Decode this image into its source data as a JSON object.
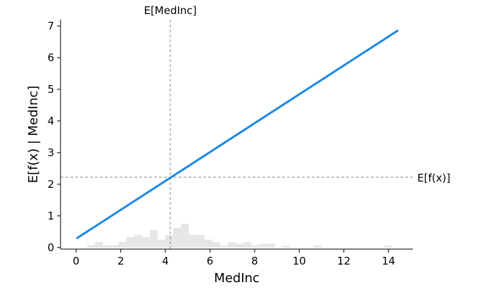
{
  "chart_data": {
    "type": "line",
    "xlabel": "MedInc",
    "ylabel": "E[f(x) | MedInc]",
    "xlim": [
      -0.7,
      15.1
    ],
    "ylim": [
      -0.05,
      7.2
    ],
    "x_ticks": [
      0,
      2,
      4,
      6,
      8,
      10,
      12,
      14
    ],
    "y_ticks": [
      0,
      1,
      2,
      3,
      4,
      5,
      6,
      7
    ],
    "line": {
      "color": "#1E88E5",
      "x": [
        0.05,
        14.4
      ],
      "y": [
        0.3,
        6.85
      ]
    },
    "expected_value": {
      "label": "E[f(x)]",
      "y": 2.22
    },
    "expected_feature": {
      "label": "E[MedInc]",
      "x": 4.22
    },
    "histogram": {
      "color": "#e6e6e6",
      "bin_width": 0.35,
      "bins": [
        {
          "x": 0.5,
          "h": 0.07
        },
        {
          "x": 0.85,
          "h": 0.17
        },
        {
          "x": 1.2,
          "h": 0.07
        },
        {
          "x": 1.55,
          "h": 0.07
        },
        {
          "x": 1.9,
          "h": 0.18
        },
        {
          "x": 2.25,
          "h": 0.33
        },
        {
          "x": 2.6,
          "h": 0.4
        },
        {
          "x": 2.95,
          "h": 0.33
        },
        {
          "x": 3.3,
          "h": 0.55
        },
        {
          "x": 3.65,
          "h": 0.25
        },
        {
          "x": 4.0,
          "h": 0.4
        },
        {
          "x": 4.35,
          "h": 0.62
        },
        {
          "x": 4.7,
          "h": 0.75
        },
        {
          "x": 5.05,
          "h": 0.4
        },
        {
          "x": 5.4,
          "h": 0.4
        },
        {
          "x": 5.75,
          "h": 0.25
        },
        {
          "x": 6.1,
          "h": 0.17
        },
        {
          "x": 6.45,
          "h": 0.07
        },
        {
          "x": 6.8,
          "h": 0.17
        },
        {
          "x": 7.15,
          "h": 0.12
        },
        {
          "x": 7.5,
          "h": 0.17
        },
        {
          "x": 7.85,
          "h": 0.07
        },
        {
          "x": 8.2,
          "h": 0.12
        },
        {
          "x": 8.55,
          "h": 0.12
        },
        {
          "x": 9.25,
          "h": 0.05
        },
        {
          "x": 10.65,
          "h": 0.06
        },
        {
          "x": 13.8,
          "h": 0.06
        }
      ]
    }
  }
}
